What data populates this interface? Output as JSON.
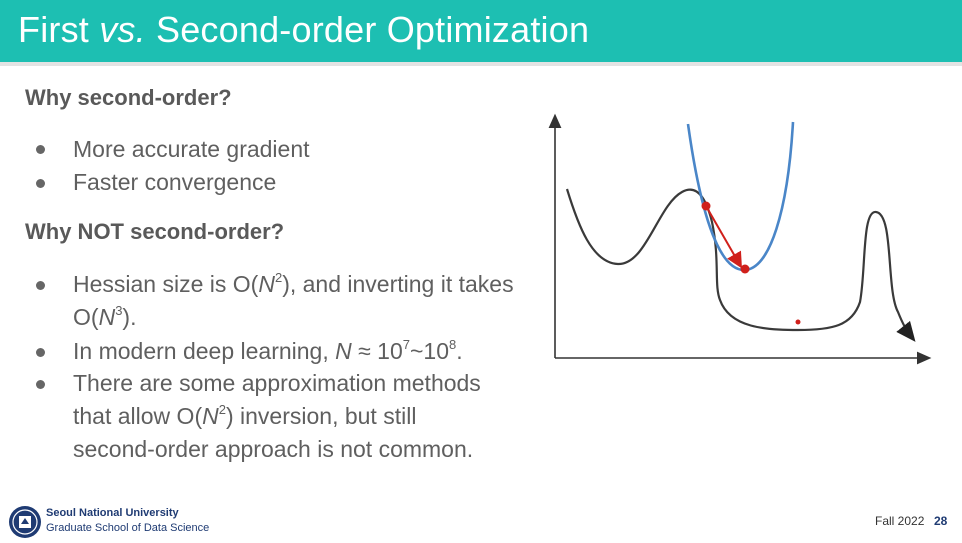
{
  "title": {
    "part1": "First ",
    "part2": "vs.",
    "part3": " Second-order Optimization"
  },
  "section1": {
    "heading": "Why second-order?",
    "bullets": [
      "More accurate gradient",
      "Faster convergence"
    ]
  },
  "section2": {
    "heading": "Why NOT second-order?",
    "bullet1": {
      "a": "Hessian size is O(",
      "b": "N",
      "c": "2",
      "d": "), and inverting it takes",
      "e": "O(",
      "f": "N",
      "g": "3",
      "h": ")."
    },
    "bullet2": {
      "a": "In modern deep learning, ",
      "b": "N",
      "c": " ≈ 10",
      "d": "7",
      "e": "~10",
      "f": "8",
      "g": "."
    },
    "bullet3": {
      "l1": "There are some approximation methods",
      "l2a": "that allow O(",
      "l2b": "N",
      "l2c": "2",
      "l2d": ") inversion, but still",
      "l3": "second-order approach is not common."
    }
  },
  "diagram": {
    "colors": {
      "loss_curve": "#3a3a3a",
      "quadratic": "#4a86c8",
      "step": "#d0201b",
      "axes": "#333333"
    }
  },
  "footer": {
    "university": "Seoul National University",
    "school": "Graduate School of Data Science",
    "term": "Fall 2022",
    "page": "28"
  },
  "colors": {
    "title_bar": "#1dbfb2",
    "title_text": "#ffffff",
    "body_text": "#5f5f5f"
  }
}
